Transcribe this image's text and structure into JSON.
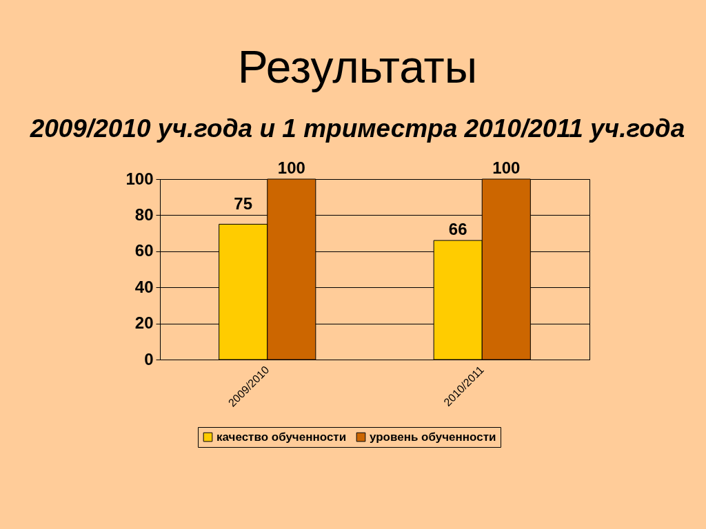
{
  "chart_data": {
    "type": "bar",
    "title": "Результаты",
    "subtitle": "2009/2010 уч.года и 1 триместра 2010/2011 уч.года",
    "categories": [
      "2009/2010",
      "2010/2011"
    ],
    "series": [
      {
        "name": "качество обученности",
        "color": "#ffcc00",
        "values": [
          75,
          66
        ]
      },
      {
        "name": "уровень обученности",
        "color": "#cc6600",
        "values": [
          100,
          100
        ]
      }
    ],
    "ylim": [
      0,
      100
    ],
    "yticks": [
      0,
      20,
      40,
      60,
      80,
      100
    ],
    "grid": "y",
    "legend": "bottom",
    "data_labels": true
  }
}
